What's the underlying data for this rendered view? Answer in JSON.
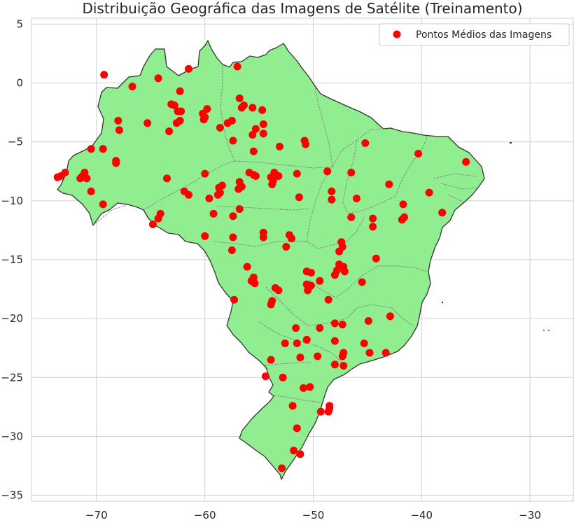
{
  "chart_data": {
    "type": "scatter",
    "title": "Distribuição Geográfica das Imagens de Satélite (Treinamento)",
    "xlim": [
      -76,
      -26
    ],
    "ylim": [
      -35.5,
      5.5
    ],
    "x_ticks": [
      "−70",
      "−60",
      "−50",
      "−40",
      "−30"
    ],
    "y_ticks": [
      "5",
      "0",
      "−5",
      "−10",
      "−15",
      "−20",
      "−25",
      "−30",
      "−35"
    ],
    "x_tick_values": [
      -70,
      -60,
      -50,
      -40,
      -30
    ],
    "y_tick_values": [
      5,
      0,
      -5,
      -10,
      -15,
      -20,
      -25,
      -30,
      -35
    ],
    "grid": true,
    "legend_position": "top-right",
    "colors": {
      "land": "#90ee90",
      "border": "#333333",
      "state_lines": "#808080",
      "points": "#ff0000",
      "grid": "#cfcfcf"
    },
    "series": [
      {
        "name": "Pontos Médios das Imagens",
        "color": "#ff0000",
        "points": [
          [
            -69.3,
            0.7
          ],
          [
            -66.7,
            -0.3
          ],
          [
            -64.3,
            0.4
          ],
          [
            -61.5,
            1.2
          ],
          [
            -62.3,
            -0.7
          ],
          [
            -57.0,
            1.4
          ],
          [
            -68.0,
            -3.2
          ],
          [
            -67.9,
            -4.0
          ],
          [
            -65.3,
            -3.4
          ],
          [
            -63.3,
            -4.1
          ],
          [
            -63.1,
            -1.8
          ],
          [
            -62.8,
            -1.9
          ],
          [
            -62.5,
            -2.4
          ],
          [
            -62.6,
            -3.4
          ],
          [
            -62.3,
            -3.2
          ],
          [
            -62.2,
            -2.4
          ],
          [
            -60.2,
            -2.6
          ],
          [
            -59.8,
            -2.2
          ],
          [
            -60.0,
            -2.9
          ],
          [
            -60.1,
            -3.1
          ],
          [
            -58.6,
            -3.8
          ],
          [
            -57.9,
            -3.4
          ],
          [
            -57.5,
            -3.2
          ],
          [
            -57.4,
            -4.9
          ],
          [
            -56.8,
            -1.3
          ],
          [
            -56.6,
            -2.1
          ],
          [
            -56.4,
            -1.9
          ],
          [
            -55.6,
            -2.1
          ],
          [
            -55.6,
            -4.4
          ],
          [
            -55.3,
            -3.9
          ],
          [
            -54.7,
            -2.3
          ],
          [
            -54.6,
            -3.5
          ],
          [
            -54.6,
            -4.3
          ],
          [
            -55.5,
            -5.8
          ],
          [
            -70.5,
            -5.6
          ],
          [
            -69.4,
            -5.6
          ],
          [
            -68.2,
            -6.6
          ],
          [
            -68.2,
            -6.8
          ],
          [
            -71.3,
            -7.9
          ],
          [
            -71.5,
            -8.1
          ],
          [
            -71.1,
            -7.6
          ],
          [
            -70.9,
            -8.1
          ],
          [
            -72.9,
            -7.6
          ],
          [
            -73.6,
            -8.0
          ],
          [
            -73.3,
            -7.9
          ],
          [
            -70.5,
            -9.2
          ],
          [
            -69.4,
            -10.3
          ],
          [
            -63.5,
            -8.1
          ],
          [
            -61.9,
            -9.2
          ],
          [
            -61.5,
            -9.5
          ],
          [
            -64.1,
            -11.1
          ],
          [
            -64.3,
            -11.5
          ],
          [
            -64.8,
            -12.0
          ],
          [
            -59.6,
            -9.8
          ],
          [
            -58.8,
            -9.5
          ],
          [
            -58.7,
            -8.9
          ],
          [
            -58.4,
            -8.7
          ],
          [
            -58.6,
            -9.3
          ],
          [
            -59.2,
            -11.1
          ],
          [
            -60.0,
            -7.7
          ],
          [
            -56.8,
            -8.4
          ],
          [
            -56.6,
            -8.8
          ],
          [
            -56.9,
            -9.0
          ],
          [
            -55.9,
            -7.6
          ],
          [
            -55.5,
            -7.8
          ],
          [
            -55.3,
            -7.9
          ],
          [
            -56.8,
            -10.7
          ],
          [
            -57.4,
            -11.3
          ],
          [
            -53.9,
            -8.0
          ],
          [
            -53.7,
            -8.3
          ],
          [
            -53.8,
            -8.6
          ],
          [
            -53.6,
            -7.6
          ],
          [
            -53.2,
            -7.9
          ],
          [
            -53.1,
            -5.4
          ],
          [
            -51.5,
            -7.7
          ],
          [
            -51.3,
            -9.7
          ],
          [
            -50.8,
            -4.9
          ],
          [
            -50.7,
            -5.2
          ],
          [
            -48.7,
            -7.5
          ],
          [
            -48.3,
            -9.2
          ],
          [
            -48.3,
            -9.9
          ],
          [
            -46.5,
            -7.6
          ],
          [
            -45.2,
            -5.1
          ],
          [
            -46.0,
            -9.8
          ],
          [
            -46.5,
            -11.4
          ],
          [
            -44.5,
            -11.5
          ],
          [
            -44.5,
            -12.2
          ],
          [
            -43.0,
            -8.6
          ],
          [
            -40.3,
            -6.0
          ],
          [
            -35.9,
            -6.7
          ],
          [
            -39.3,
            -9.3
          ],
          [
            -41.7,
            -10.3
          ],
          [
            -41.8,
            -11.6
          ],
          [
            -41.6,
            -11.4
          ],
          [
            -38.1,
            -11.0
          ],
          [
            -60.0,
            -13.0
          ],
          [
            -57.4,
            -13.1
          ],
          [
            -57.5,
            -14.2
          ],
          [
            -54.6,
            -12.7
          ],
          [
            -54.6,
            -13.1
          ],
          [
            -52.5,
            -13.9
          ],
          [
            -52.2,
            -12.9
          ],
          [
            -52.0,
            -13.2
          ],
          [
            -47.4,
            -13.5
          ],
          [
            -47.3,
            -13.9
          ],
          [
            -47.6,
            -14.3
          ],
          [
            -44.2,
            -14.9
          ],
          [
            -47.6,
            -15.4
          ],
          [
            -47.8,
            -15.9
          ],
          [
            -48.0,
            -16.3
          ],
          [
            -47.2,
            -15.6
          ],
          [
            -47.1,
            -16.0
          ],
          [
            -50.6,
            -16.0
          ],
          [
            -50.2,
            -16.1
          ],
          [
            -50.6,
            -17.1
          ],
          [
            -50.2,
            -17.2
          ],
          [
            -50.5,
            -17.6
          ],
          [
            -49.4,
            -16.8
          ],
          [
            -45.5,
            -16.9
          ],
          [
            -56.1,
            -15.6
          ],
          [
            -55.5,
            -16.5
          ],
          [
            -55.7,
            -16.8
          ],
          [
            -55.4,
            -17.0
          ],
          [
            -53.5,
            -17.4
          ],
          [
            -53.2,
            -17.6
          ],
          [
            -53.8,
            -18.5
          ],
          [
            -53.9,
            -18.8
          ],
          [
            -57.3,
            -18.4
          ],
          [
            -48.6,
            -18.4
          ],
          [
            -51.6,
            -20.8
          ],
          [
            -49.4,
            -20.8
          ],
          [
            -48.0,
            -20.4
          ],
          [
            -47.3,
            -20.5
          ],
          [
            -44.9,
            -20.2
          ],
          [
            -42.9,
            -19.8
          ],
          [
            -52.6,
            -22.1
          ],
          [
            -51.5,
            -22.1
          ],
          [
            -50.6,
            -21.8
          ],
          [
            -48.0,
            -21.9
          ],
          [
            -47.2,
            -22.9
          ],
          [
            -47.3,
            -23.2
          ],
          [
            -45.3,
            -22.1
          ],
          [
            -44.8,
            -22.9
          ],
          [
            -43.3,
            -22.9
          ],
          [
            -53.9,
            -23.5
          ],
          [
            -51.2,
            -23.3
          ],
          [
            -49.6,
            -23.2
          ],
          [
            -48.0,
            -23.9
          ],
          [
            -47.2,
            -24.0
          ],
          [
            -54.4,
            -24.9
          ],
          [
            -52.8,
            -25.0
          ],
          [
            -50.9,
            -25.9
          ],
          [
            -50.3,
            -25.8
          ],
          [
            -51.9,
            -27.4
          ],
          [
            -49.3,
            -27.9
          ],
          [
            -48.6,
            -27.9
          ],
          [
            -48.5,
            -27.6
          ],
          [
            -48.5,
            -27.4
          ],
          [
            -51.5,
            -29.3
          ],
          [
            -51.8,
            -31.2
          ],
          [
            -51.2,
            -31.5
          ],
          [
            -52.9,
            -32.7
          ]
        ]
      }
    ]
  }
}
